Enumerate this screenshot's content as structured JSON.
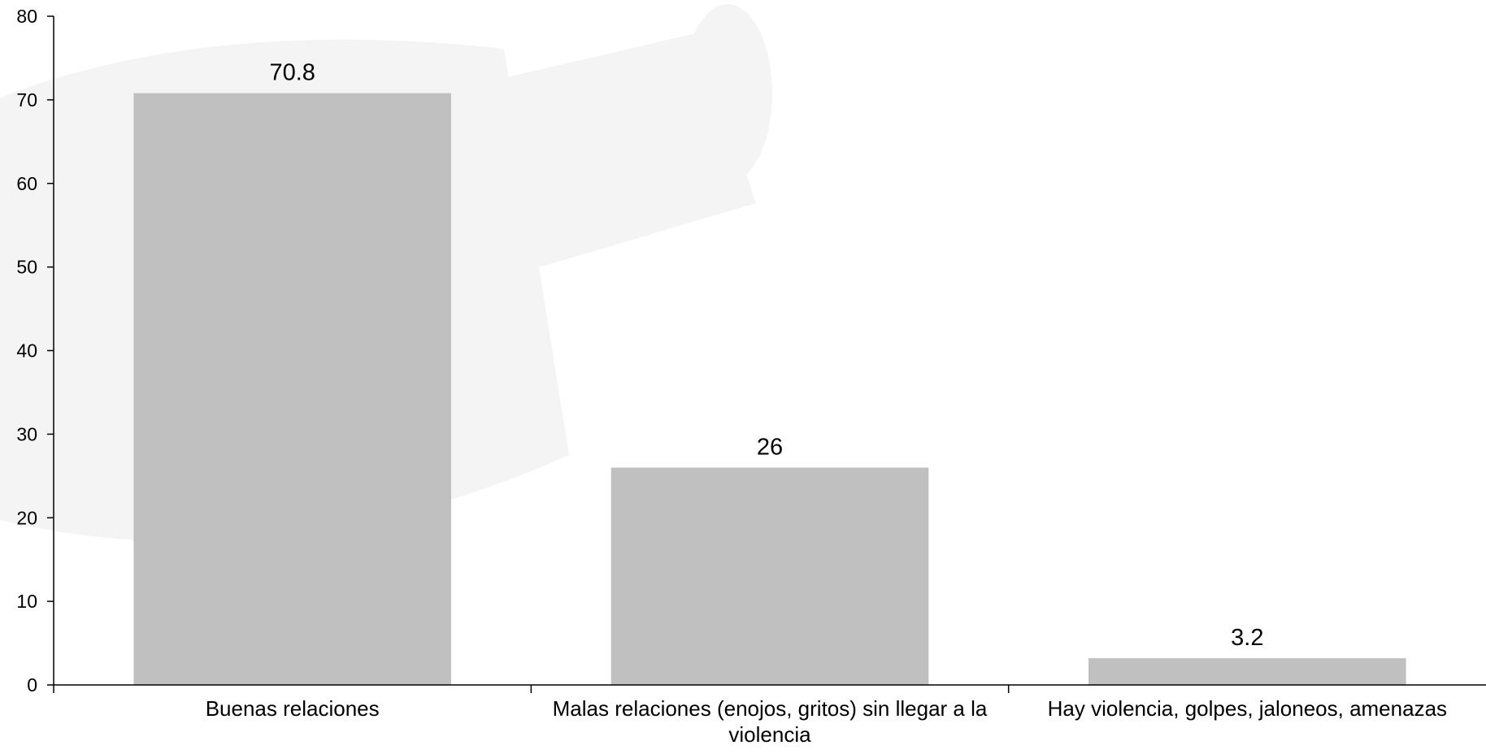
{
  "chart_data": {
    "type": "bar",
    "categories": [
      [
        "Buenas relaciones"
      ],
      [
        "Malas relaciones (enojos, gritos) sin llegar a la",
        "violencia"
      ],
      [
        "Hay violencia, golpes, jaloneos, amenazas"
      ]
    ],
    "values": [
      70.8,
      26,
      3.2
    ],
    "data_labels": [
      "70.8",
      "26",
      "3.2"
    ],
    "title": "",
    "xlabel": "",
    "ylabel": "",
    "ylim": [
      0,
      80
    ],
    "yticks": [
      "0",
      "10",
      "20",
      "30",
      "40",
      "50",
      "60",
      "70",
      "80"
    ],
    "grid": false,
    "legend": "none",
    "colors": {
      "bar": "#c0c0c0",
      "axis": "#000000",
      "watermark": "#f4f4f4"
    }
  }
}
